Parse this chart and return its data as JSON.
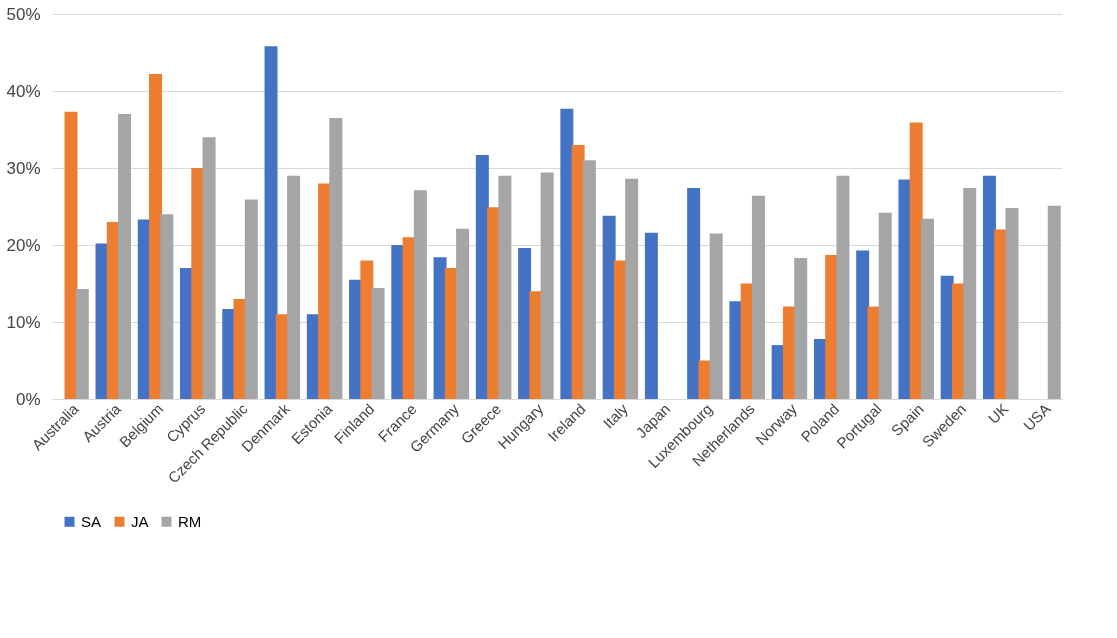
{
  "chart_data": {
    "type": "bar",
    "categories": [
      "Australia",
      "Austria",
      "Belgium",
      "Cyprus",
      "Czech Republic",
      "Denmark",
      "Estonia",
      "Finland",
      "France",
      "Germany",
      "Greece",
      "Hungary",
      "Ireland",
      "Italy",
      "Japan",
      "Luxembourg",
      "Netherlands",
      "Norway",
      "Poland",
      "Portugal",
      "Spain",
      "Sweden",
      "UK",
      "USA"
    ],
    "series": [
      {
        "name": "SA",
        "color": "#4472c4",
        "values": [
          null,
          20.2,
          23.3,
          17.0,
          11.7,
          45.8,
          11.0,
          15.5,
          20.0,
          18.4,
          31.7,
          19.6,
          37.7,
          23.8,
          21.6,
          27.4,
          12.7,
          7.0,
          7.8,
          19.3,
          28.5,
          16.0,
          29.0,
          null
        ]
      },
      {
        "name": "JA",
        "color": "#ed7d31",
        "values": [
          37.3,
          23.0,
          42.2,
          30.0,
          13.0,
          11.0,
          28.0,
          18.0,
          21.0,
          17.0,
          24.9,
          14.0,
          33.0,
          18.0,
          null,
          5.0,
          15.0,
          12.0,
          18.7,
          12.0,
          35.9,
          15.0,
          22.0,
          null
        ]
      },
      {
        "name": "RM",
        "color": "#a5a5a5",
        "values": [
          14.3,
          37.0,
          24.0,
          34.0,
          25.9,
          29.0,
          36.5,
          14.4,
          27.1,
          22.1,
          29.0,
          29.4,
          31.0,
          28.6,
          null,
          21.5,
          26.4,
          18.3,
          29.0,
          24.2,
          23.4,
          27.4,
          24.8,
          25.1
        ]
      }
    ],
    "ylim": [
      0,
      50
    ],
    "yticks": [
      {
        "value": 0,
        "label": "0%"
      },
      {
        "value": 10,
        "label": "10%"
      },
      {
        "value": 20,
        "label": "20%"
      },
      {
        "value": 30,
        "label": "30%"
      },
      {
        "value": 40,
        "label": "40%"
      },
      {
        "value": 50,
        "label": "50%"
      }
    ],
    "grid": "y",
    "legend": "bottom"
  }
}
